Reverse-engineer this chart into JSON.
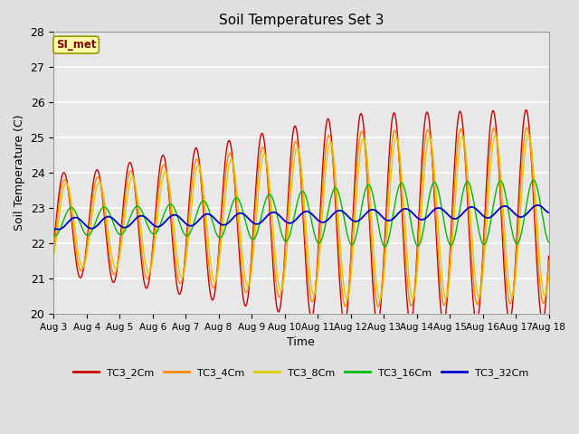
{
  "title": "Soil Temperatures Set 3",
  "xlabel": "Time",
  "ylabel": "Soil Temperature (C)",
  "ylim": [
    20.0,
    28.0
  ],
  "yticks": [
    20.0,
    21.0,
    22.0,
    23.0,
    24.0,
    25.0,
    26.0,
    27.0,
    28.0
  ],
  "xtick_labels": [
    "Aug 3",
    "Aug 4",
    "Aug 5",
    "Aug 6",
    "Aug 7",
    "Aug 8",
    "Aug 9",
    "Aug 10",
    "Aug 11",
    "Aug 12",
    "Aug 13",
    "Aug 14",
    "Aug 15",
    "Aug 16",
    "Aug 17",
    "Aug 18"
  ],
  "series_colors": [
    "#cc0000",
    "#ff8800",
    "#ddcc00",
    "#00bb00",
    "#0000cc"
  ],
  "series_labels": [
    "TC3_2Cm",
    "TC3_4Cm",
    "TC3_8Cm",
    "TC3_16Cm",
    "TC3_32Cm"
  ],
  "background_color": "#e0e0e0",
  "plot_bg_color": "#e8e8e8",
  "grid_color": "#ffffff",
  "annotation_text": "SI_met",
  "annotation_bg": "#ffffaa",
  "annotation_border": "#999900"
}
